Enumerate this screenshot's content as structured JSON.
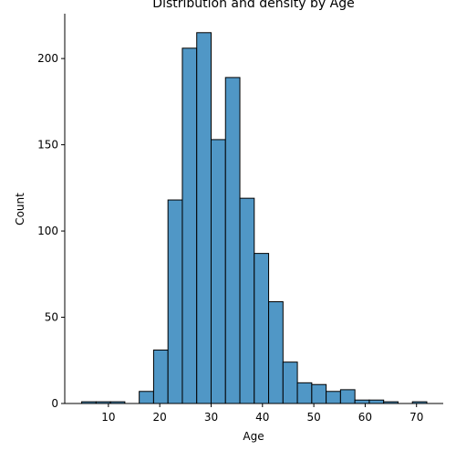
{
  "chart_data": {
    "type": "bar",
    "title": "Distribution and density by Age",
    "xlabel": "Age",
    "ylabel": "Count",
    "bin_width": 2.8,
    "bins": [
      {
        "x0": 4.8,
        "count": 1
      },
      {
        "x0": 7.6,
        "count": 1
      },
      {
        "x0": 10.4,
        "count": 1
      },
      {
        "x0": 13.2,
        "count": 0
      },
      {
        "x0": 16.0,
        "count": 7
      },
      {
        "x0": 18.8,
        "count": 31
      },
      {
        "x0": 21.6,
        "count": 118
      },
      {
        "x0": 24.4,
        "count": 206
      },
      {
        "x0": 27.2,
        "count": 215
      },
      {
        "x0": 30.0,
        "count": 153
      },
      {
        "x0": 32.8,
        "count": 189
      },
      {
        "x0": 35.6,
        "count": 119
      },
      {
        "x0": 38.4,
        "count": 87
      },
      {
        "x0": 41.2,
        "count": 59
      },
      {
        "x0": 44.0,
        "count": 24
      },
      {
        "x0": 46.8,
        "count": 12
      },
      {
        "x0": 49.6,
        "count": 11
      },
      {
        "x0": 52.4,
        "count": 7
      },
      {
        "x0": 55.2,
        "count": 8
      },
      {
        "x0": 58.0,
        "count": 2
      },
      {
        "x0": 60.8,
        "count": 2
      },
      {
        "x0": 63.6,
        "count": 1
      },
      {
        "x0": 66.4,
        "count": 0
      },
      {
        "x0": 69.2,
        "count": 1
      }
    ],
    "x_ticks": [
      10,
      20,
      30,
      40,
      50,
      60,
      70
    ],
    "y_ticks": [
      0,
      50,
      100,
      150,
      200
    ],
    "xlim": [
      1.5,
      75.2
    ],
    "ylim": [
      0,
      226
    ],
    "bar_color": "#5097c6",
    "edge_color": "#000000",
    "grid": false
  }
}
